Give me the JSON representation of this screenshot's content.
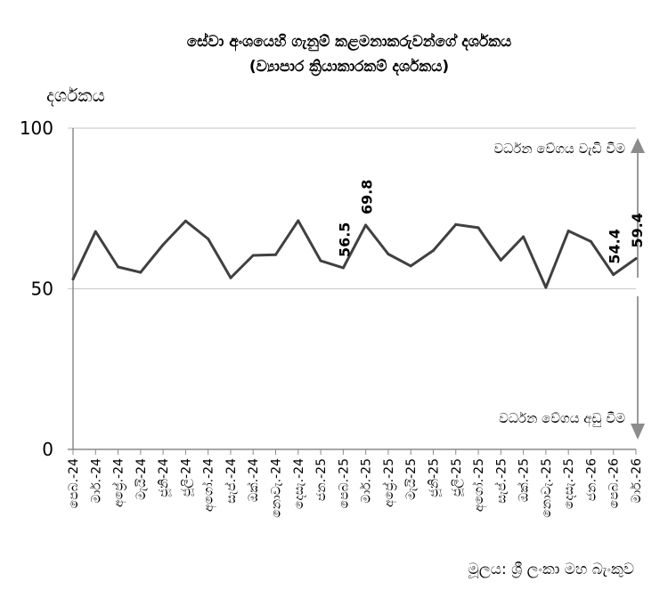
{
  "chart_data": {
    "type": "line",
    "title": "සේවා අංශයෙහි ගැනුම් කළමනාකරුවන්ගේ දර්ශකය",
    "subtitle": "(ව්‍යාපාර ක්‍රියාකාරකම් දර්ශකය)",
    "ylabel": "දර්ශකය",
    "xlabel": "",
    "ylim": [
      0,
      100
    ],
    "yticks": [
      0,
      50,
      100
    ],
    "grid": "horizontal",
    "source": "මූලය: ශ්‍රී ලංකා මහ බැංකුව",
    "annotations": {
      "up": "වර්ධන වේගය වැඩි වීම",
      "down": "වර්ධන වේගය අඩු වීම"
    },
    "categories": [
      "පෙබ.-24",
      "මාර්.-24",
      "අප්‍රේ.-24",
      "මැයි-24",
      "ජූනි-24",
      "ජූලි-24",
      "අගෝ.-24",
      "සැප්.-24",
      "ඔක්.-24",
      "නොවැ.-24",
      "දෙසැ.-24",
      "ජන.-25",
      "පෙබ.-25",
      "මාර්.-25",
      "අප්‍රේ.-25",
      "මැයි-25",
      "ජූනි-25",
      "ජූලි-25",
      "අගෝ.-25",
      "සැප්.-25",
      "ඔක්.-25",
      "නොවැ.-25",
      "දෙසැ.-25",
      "ජන.-26",
      "පෙබ.-26",
      "මාර්.-26"
    ],
    "series": [
      {
        "values": [
          53.0,
          67.8,
          56.8,
          55.1,
          63.7,
          71.1,
          65.5,
          53.4,
          60.4,
          60.6,
          71.2,
          58.7,
          56.5,
          69.8,
          60.8,
          57.1,
          61.9,
          70.0,
          69.0,
          58.9,
          66.2,
          50.4,
          68.0,
          64.7,
          54.4,
          59.4
        ],
        "color": "#404040"
      }
    ],
    "data_labels": [
      {
        "index": 12,
        "text": "56.5"
      },
      {
        "index": 13,
        "text": "69.8"
      },
      {
        "index": 24,
        "text": "54.4"
      },
      {
        "index": 25,
        "text": "59.4"
      }
    ]
  }
}
